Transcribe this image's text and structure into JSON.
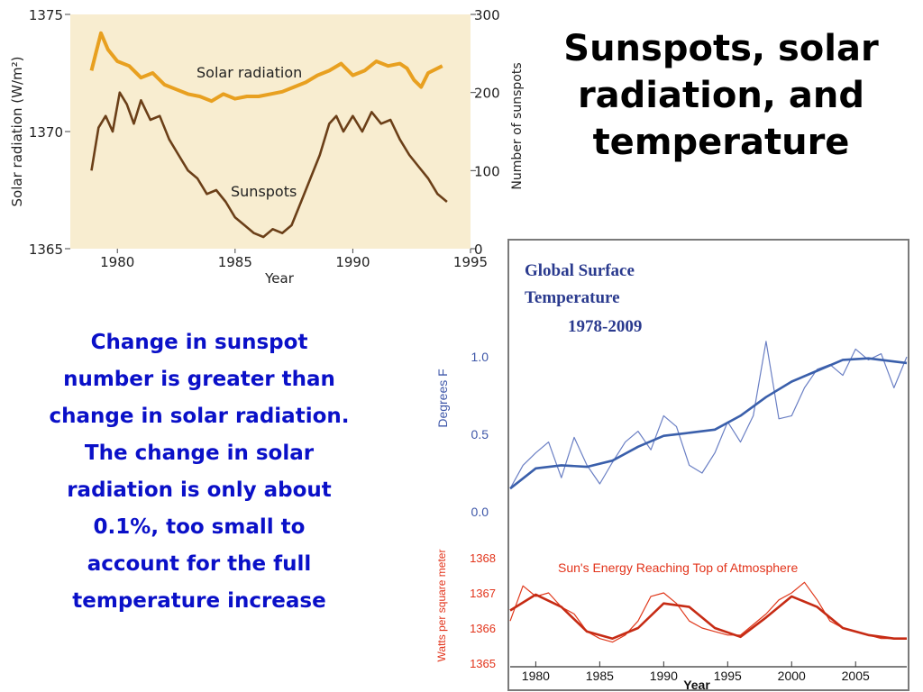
{
  "slide": {
    "title": "Sunspots, solar\nradiation, and\ntemperature",
    "note": "Change in sunspot\nnumber is greater than\nchange in solar radiation.\nThe change in solar\nradiation is only about\n0.1%, too small to\naccount for the full\ntemperature increase"
  },
  "chart_data": [
    {
      "type": "line",
      "title": "",
      "xlabel": "Year",
      "ylabel": "Solar radiation (W/m²)",
      "y2label": "Number of sunspots",
      "xlim": [
        1978,
        1995
      ],
      "ylim": [
        1365,
        1375
      ],
      "y2lim": [
        0,
        300
      ],
      "xticks": [
        "1980",
        "1985",
        "1990",
        "1995"
      ],
      "yticks": [
        "1375",
        "1370",
        "1365"
      ],
      "y2ticks": [
        "300",
        "200",
        "100",
        "0"
      ],
      "background": "#f8edd0",
      "annotations": [
        "Solar radiation",
        "Sunspots"
      ],
      "series": [
        {
          "name": "Solar radiation",
          "axis": "left",
          "color": "#e8a020",
          "x": [
            1978.9,
            1979.1,
            1979.3,
            1979.6,
            1980.0,
            1980.5,
            1981.0,
            1981.5,
            1982.0,
            1982.5,
            1983.0,
            1983.5,
            1984.0,
            1984.5,
            1985.0,
            1985.5,
            1986.0,
            1986.5,
            1987.0,
            1987.5,
            1988.0,
            1988.5,
            1989.0,
            1989.5,
            1990.0,
            1990.5,
            1991.0,
            1991.5,
            1992.0,
            1992.3,
            1992.6,
            1992.9,
            1993.2,
            1993.8
          ],
          "values": [
            1372.6,
            1373.4,
            1374.2,
            1373.5,
            1373.0,
            1372.8,
            1372.3,
            1372.5,
            1372.0,
            1371.8,
            1371.6,
            1371.5,
            1371.3,
            1371.6,
            1371.4,
            1371.5,
            1371.5,
            1371.6,
            1371.7,
            1371.9,
            1372.1,
            1372.4,
            1372.6,
            1372.9,
            1372.4,
            1372.6,
            1373.0,
            1372.8,
            1372.9,
            1372.7,
            1372.2,
            1371.9,
            1372.5,
            1372.8
          ]
        },
        {
          "name": "Sunspots",
          "axis": "right",
          "color": "#6b3f18",
          "x": [
            1978.9,
            1979.2,
            1979.5,
            1979.8,
            1980.1,
            1980.4,
            1980.7,
            1981.0,
            1981.4,
            1981.8,
            1982.2,
            1982.6,
            1983.0,
            1983.4,
            1983.8,
            1984.2,
            1984.6,
            1985.0,
            1985.4,
            1985.8,
            1986.2,
            1986.6,
            1987.0,
            1987.4,
            1987.8,
            1988.2,
            1988.6,
            1989.0,
            1989.3,
            1989.6,
            1990.0,
            1990.4,
            1990.8,
            1991.2,
            1991.6,
            1992.0,
            1992.4,
            1992.8,
            1993.2,
            1993.6,
            1994.0
          ],
          "values": [
            100,
            155,
            170,
            150,
            200,
            185,
            160,
            190,
            165,
            170,
            140,
            120,
            100,
            90,
            70,
            75,
            60,
            40,
            30,
            20,
            15,
            25,
            20,
            30,
            60,
            90,
            120,
            160,
            170,
            150,
            170,
            150,
            175,
            160,
            165,
            140,
            120,
            105,
            90,
            70,
            60
          ]
        }
      ]
    },
    {
      "type": "line",
      "title": "Global Surface\nTemperature\n1978-2009",
      "xlabel": "Year",
      "ylabel": "Degrees F",
      "y2label": "Watts per square meter",
      "xlim": [
        1978,
        2009
      ],
      "ylim": [
        0.0,
        1.0
      ],
      "y2lim": [
        1365,
        1368
      ],
      "xticks": [
        "1980",
        "1985",
        "1990",
        "1995",
        "2000",
        "2005"
      ],
      "yticks": [
        "1.0",
        "0.5",
        "0.0"
      ],
      "y2ticks": [
        "1368",
        "1367",
        "1366",
        "1365"
      ],
      "annotations": [
        "Sun's Energy Reaching Top of Atmosphere"
      ],
      "series": [
        {
          "name": "Global Surface Temperature (monthly)",
          "color": "#6a7fc4",
          "x": [
            1978,
            1979,
            1980,
            1981,
            1982,
            1983,
            1984,
            1985,
            1986,
            1987,
            1988,
            1989,
            1990,
            1991,
            1992,
            1993,
            1994,
            1995,
            1996,
            1997,
            1998,
            1999,
            2000,
            2001,
            2002,
            2003,
            2004,
            2005,
            2006,
            2007,
            2008,
            2009
          ],
          "values": [
            0.15,
            0.3,
            0.38,
            0.45,
            0.22,
            0.48,
            0.3,
            0.18,
            0.32,
            0.45,
            0.52,
            0.4,
            0.62,
            0.55,
            0.3,
            0.25,
            0.38,
            0.58,
            0.45,
            0.62,
            1.1,
            0.6,
            0.62,
            0.8,
            0.92,
            0.95,
            0.88,
            1.05,
            0.98,
            1.02,
            0.8,
            1.0
          ]
        },
        {
          "name": "Global Surface Temperature (smoothed)",
          "color": "#3a5fab",
          "x": [
            1978,
            1980,
            1982,
            1984,
            1986,
            1988,
            1990,
            1992,
            1994,
            1996,
            1998,
            2000,
            2002,
            2004,
            2006,
            2008,
            2009
          ],
          "values": [
            0.15,
            0.28,
            0.3,
            0.29,
            0.33,
            0.42,
            0.49,
            0.51,
            0.53,
            0.62,
            0.74,
            0.84,
            0.91,
            0.98,
            0.99,
            0.97,
            0.96
          ]
        },
        {
          "name": "Sun's Energy Reaching Top of Atmosphere",
          "axis": "right",
          "color": "#e0391c",
          "x": [
            1978,
            1979,
            1980,
            1981,
            1982,
            1983,
            1984,
            1985,
            1986,
            1987,
            1988,
            1989,
            1990,
            1991,
            1992,
            1993,
            1994,
            1995,
            1996,
            1997,
            1998,
            1999,
            2000,
            2001,
            2002,
            2003,
            2004,
            2005,
            2006,
            2007,
            2008,
            2009
          ],
          "values": [
            1366.2,
            1367.2,
            1366.9,
            1367.0,
            1366.6,
            1366.4,
            1365.9,
            1365.7,
            1365.6,
            1365.8,
            1366.2,
            1366.9,
            1367.0,
            1366.7,
            1366.2,
            1366.0,
            1365.9,
            1365.8,
            1365.8,
            1366.1,
            1366.4,
            1366.8,
            1367.0,
            1367.3,
            1366.8,
            1366.2,
            1366.0,
            1365.9,
            1365.8,
            1365.7,
            1365.7,
            1365.7
          ]
        },
        {
          "name": "Sun's Energy (smoothed)",
          "axis": "right",
          "color": "#c62b14",
          "x": [
            1978,
            1980,
            1982,
            1984,
            1986,
            1988,
            1990,
            1992,
            1994,
            1996,
            1998,
            2000,
            2002,
            2004,
            2006,
            2008,
            2009
          ],
          "values": [
            1366.5,
            1366.95,
            1366.6,
            1365.9,
            1365.7,
            1366.0,
            1366.7,
            1366.6,
            1366.0,
            1365.75,
            1366.3,
            1366.9,
            1366.6,
            1366.0,
            1365.8,
            1365.7,
            1365.7
          ]
        }
      ]
    }
  ]
}
